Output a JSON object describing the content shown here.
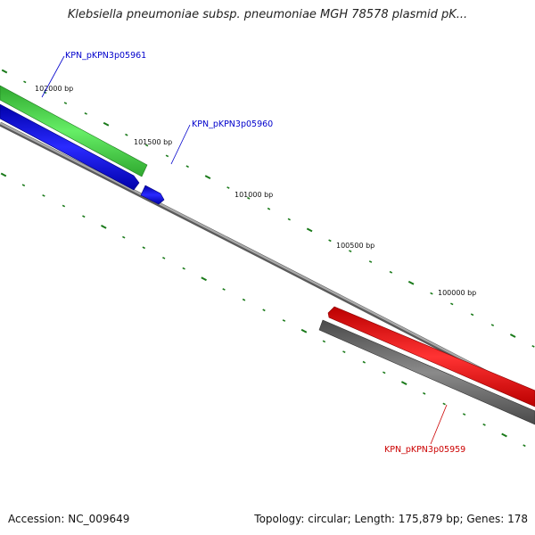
{
  "title": "Klebsiella pneumoniae subsp. pneumoniae MGH 78578 plasmid pK...",
  "footer": {
    "accession": "Accession: NC_009649",
    "summary": "Topology: circular; Length: 175,879 bp; Genes: 178"
  },
  "scale_labels": [
    "102000 bp",
    "101500 bp",
    "101000 bp",
    "100500 bp",
    "100000 bp"
  ],
  "genes": [
    {
      "name": "KPN_pKPN3p05961",
      "color": "#0000cc"
    },
    {
      "name": "KPN_pKPN3p05960",
      "color": "#0000cc"
    },
    {
      "name": "KPN_pKPN3p05959",
      "color": "#cc0000"
    }
  ],
  "colors": {
    "backbone": "#888888",
    "feature_green": "#33cc33",
    "feature_blue": "#0000ee",
    "feature_red": "#ee0000",
    "feature_gray": "#666666",
    "ticks": "#1a7a1a"
  }
}
